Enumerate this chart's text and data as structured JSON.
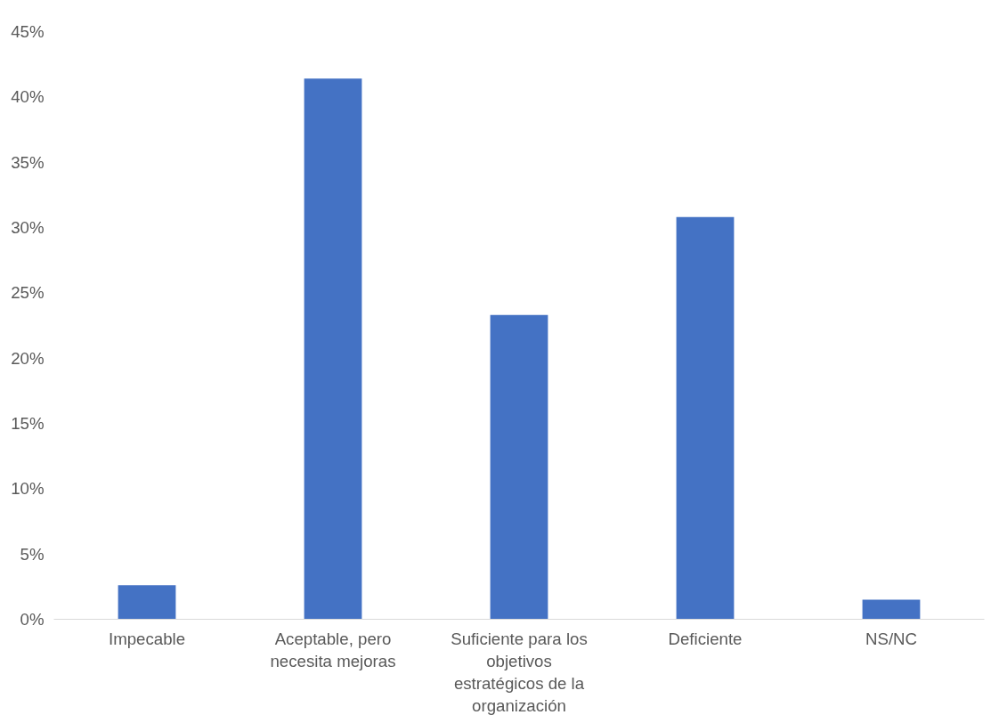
{
  "chart_data": {
    "type": "bar",
    "categories": [
      "Impecable",
      "Aceptable, pero necesita mejoras",
      "Suficiente para los objetivos estratégicos de la organización",
      "Deficiente",
      "NS/NC"
    ],
    "values": [
      2.6,
      41.4,
      23.3,
      30.8,
      1.5
    ],
    "color": "#4472c4",
    "ylim": [
      0,
      45
    ],
    "yticks": [
      {
        "value": 0,
        "label": "0%"
      },
      {
        "value": 5,
        "label": "5%"
      },
      {
        "value": 10,
        "label": "10%"
      },
      {
        "value": 15,
        "label": "15%"
      },
      {
        "value": 20,
        "label": "20%"
      },
      {
        "value": 25,
        "label": "25%"
      },
      {
        "value": 30,
        "label": "30%"
      },
      {
        "value": 35,
        "label": "35%"
      },
      {
        "value": 40,
        "label": "40%"
      },
      {
        "value": 45,
        "label": "45%"
      }
    ],
    "grid": false
  }
}
